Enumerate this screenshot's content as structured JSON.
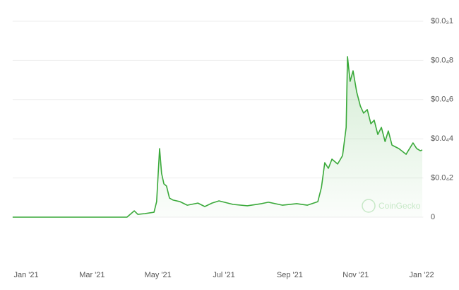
{
  "chart_data": {
    "type": "line",
    "watermark": "CoinGecko",
    "xlim": [
      -0.41,
      12.05
    ],
    "xticks": [
      {
        "value": 0,
        "label": "Jan '21"
      },
      {
        "value": 2,
        "label": "Mar '21"
      },
      {
        "value": 4,
        "label": "May '21"
      },
      {
        "value": 6,
        "label": "Jul '21"
      },
      {
        "value": 8,
        "label": "Sep '21"
      },
      {
        "value": 10,
        "label": "Nov '21"
      },
      {
        "value": 12,
        "label": "Jan '22"
      }
    ],
    "ylim": [
      0,
      0.0001
    ],
    "yticks": [
      0,
      {
        "value": 2e-05,
        "label": "$0.0₄2"
      },
      {
        "value": 4e-05,
        "label": "$0.0₄4"
      },
      {
        "value": 6e-05,
        "label": "$0.0₄6"
      },
      {
        "value": 8e-05,
        "label": "$0.0₄8"
      },
      {
        "value": 0.0001,
        "label": "$0.0₃1"
      }
    ],
    "grid": true,
    "series": [
      {
        "color": "#3aa93a",
        "x": [
          -0.41,
          3.06,
          3.28,
          3.39,
          3.6,
          3.88,
          3.96,
          4.05,
          4.11,
          4.18,
          4.26,
          4.35,
          4.46,
          4.67,
          4.89,
          5.21,
          5.42,
          5.64,
          5.85,
          6.28,
          6.71,
          7.14,
          7.35,
          7.78,
          8.21,
          8.53,
          8.85,
          8.96,
          9.06,
          9.17,
          9.28,
          9.45,
          9.6,
          9.71,
          9.75,
          9.83,
          9.92,
          10.03,
          10.14,
          10.24,
          10.35,
          10.46,
          10.56,
          10.67,
          10.78,
          10.89,
          10.99,
          11.1,
          11.31,
          11.53,
          11.74,
          11.85,
          11.96,
          12.02
        ],
        "values": [
          0,
          0,
          3.2e-06,
          1.4e-06,
          1.8e-06,
          2.5e-06,
          7.9e-06,
          3.5e-05,
          2.24e-05,
          1.7e-05,
          1.59e-05,
          9.7e-06,
          8.7e-06,
          7.9e-06,
          6.1e-06,
          7.2e-06,
          5.4e-06,
          7.2e-06,
          8.3e-06,
          6.5e-06,
          5.8e-06,
          6.9e-06,
          7.6e-06,
          6.1e-06,
          6.9e-06,
          6.1e-06,
          7.9e-06,
          1.52e-05,
          2.78e-05,
          2.49e-05,
          2.96e-05,
          2.71e-05,
          3.14e-05,
          4.58e-05,
          8.19e-05,
          6.93e-05,
          7.47e-05,
          6.39e-05,
          5.67e-05,
          5.31e-05,
          5.49e-05,
          4.77e-05,
          4.95e-05,
          4.22e-05,
          4.58e-05,
          3.86e-05,
          4.4e-05,
          3.68e-05,
          3.5e-05,
          3.21e-05,
          3.79e-05,
          3.5e-05,
          3.39e-05,
          3.43e-05
        ]
      }
    ]
  }
}
